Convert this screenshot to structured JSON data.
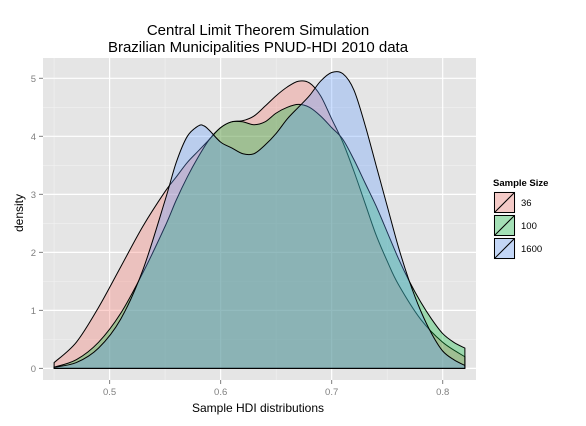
{
  "chart_data": {
    "type": "area",
    "title": "Central Limit Theorem Simulation",
    "subtitle": "Brazilian Municipalities PNUD-HDI 2010 data",
    "xlabel": "Sample HDI distributions",
    "ylabel": "density",
    "xlim": [
      0.44,
      0.83
    ],
    "ylim": [
      -0.2,
      5.35
    ],
    "x_ticks": [
      0.5,
      0.6,
      0.7,
      0.8
    ],
    "x_tick_labels": [
      "0.5",
      "0.6",
      "0.7",
      "0.8"
    ],
    "y_ticks": [
      0,
      1,
      2,
      3,
      4,
      5
    ],
    "y_tick_labels": [
      "0",
      "1",
      "2",
      "3",
      "4",
      "5"
    ],
    "grid": true,
    "legend": {
      "title": "Sample Size",
      "position": "right"
    },
    "series": [
      {
        "name": "36",
        "color": "#f8766d",
        "x": [
          0.45,
          0.47,
          0.49,
          0.51,
          0.53,
          0.55,
          0.56,
          0.57,
          0.58,
          0.59,
          0.6,
          0.61,
          0.62,
          0.63,
          0.64,
          0.65,
          0.66,
          0.67,
          0.68,
          0.69,
          0.7,
          0.71,
          0.72,
          0.73,
          0.74,
          0.75,
          0.76,
          0.78,
          0.8,
          0.82
        ],
        "values": [
          0.1,
          0.45,
          1.05,
          1.75,
          2.45,
          3.05,
          3.3,
          3.55,
          3.75,
          3.95,
          4.15,
          4.25,
          4.27,
          4.35,
          4.52,
          4.7,
          4.85,
          4.95,
          4.92,
          4.7,
          4.3,
          3.9,
          3.4,
          2.85,
          2.3,
          1.85,
          1.45,
          0.85,
          0.45,
          0.2
        ]
      },
      {
        "name": "100",
        "color": "#00ba38",
        "x": [
          0.45,
          0.47,
          0.49,
          0.51,
          0.53,
          0.55,
          0.56,
          0.57,
          0.58,
          0.59,
          0.6,
          0.61,
          0.62,
          0.63,
          0.64,
          0.65,
          0.66,
          0.67,
          0.68,
          0.69,
          0.7,
          0.71,
          0.72,
          0.73,
          0.74,
          0.75,
          0.76,
          0.77,
          0.78,
          0.79,
          0.8,
          0.81,
          0.82
        ],
        "values": [
          0.02,
          0.15,
          0.45,
          0.95,
          1.65,
          2.45,
          2.9,
          3.3,
          3.65,
          3.95,
          4.15,
          4.25,
          4.25,
          4.2,
          4.25,
          4.4,
          4.5,
          4.55,
          4.5,
          4.35,
          4.15,
          3.95,
          3.6,
          3.2,
          2.8,
          2.35,
          1.9,
          1.5,
          1.15,
          0.85,
          0.6,
          0.45,
          0.35
        ]
      },
      {
        "name": "1600",
        "color": "#619cff",
        "x": [
          0.45,
          0.47,
          0.49,
          0.51,
          0.53,
          0.55,
          0.56,
          0.57,
          0.58,
          0.585,
          0.59,
          0.6,
          0.61,
          0.62,
          0.63,
          0.64,
          0.65,
          0.66,
          0.67,
          0.68,
          0.69,
          0.7,
          0.71,
          0.72,
          0.73,
          0.74,
          0.75,
          0.76,
          0.77,
          0.78,
          0.79,
          0.8,
          0.81,
          0.82
        ],
        "values": [
          0.02,
          0.1,
          0.35,
          0.85,
          1.7,
          2.9,
          3.55,
          4.0,
          4.18,
          4.18,
          4.1,
          3.9,
          3.8,
          3.7,
          3.7,
          3.85,
          4.05,
          4.3,
          4.5,
          4.7,
          4.95,
          5.1,
          5.08,
          4.8,
          4.2,
          3.5,
          2.8,
          2.1,
          1.5,
          1.0,
          0.6,
          0.3,
          0.15,
          0.05
        ]
      }
    ]
  }
}
